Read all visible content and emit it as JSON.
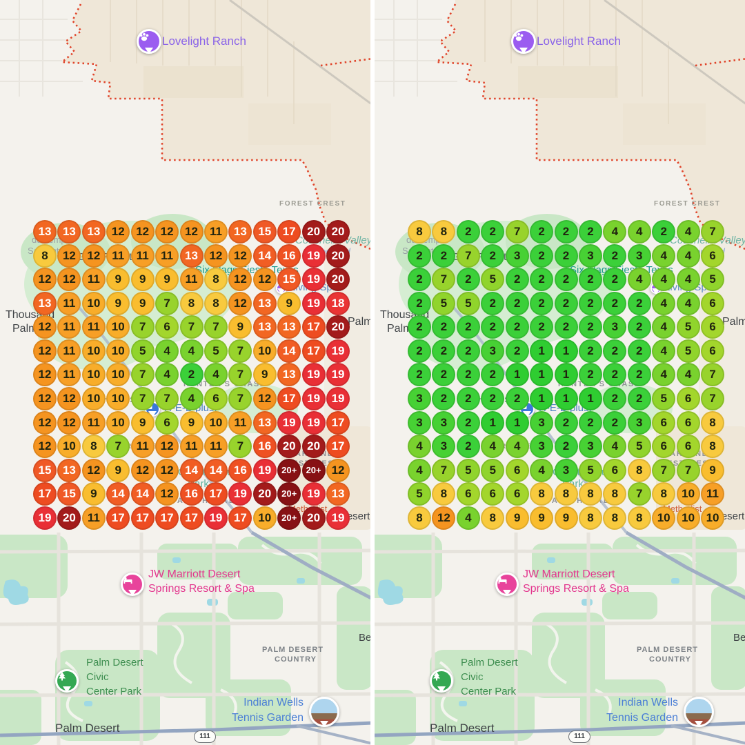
{
  "labels": {
    "lovelight_ranch": "Lovelight Ranch",
    "forest_crest": "FOREST CREST",
    "hindu_temple_line1": "du Templ",
    "hindu_temple_line2": "San Antonio",
    "grey_forest": "Grey Forest",
    "six_flags": "Six Flags Fiesta Texas",
    "coachella_valley": "Coachella Valley",
    "preserve_thousand": "Thousand",
    "living_spaces": "Living Spac",
    "thousand_line1": "Thousand",
    "thousand_line2": "Palms",
    "palm_right_edge": "Palm",
    "hunters_chase": "HUNTER'S CHASE",
    "helotes": "Helotes",
    "heb": "H-E-B plus!",
    "neighborhood_frag": "RA S M",
    "oakland": "OAKLAND",
    "estates": "ESTATES",
    "country_club": "Country Club",
    "park": "Park",
    "spanish_walk": "SPANISH WALK",
    "methodist": "Methodist",
    "desert_p": "Desert P",
    "jw_line1": "JW Marriott Desert",
    "jw_line2": "Springs Resort & Spa",
    "pd_country_line1": "PALM DESERT",
    "pd_country_line2": "COUNTRY",
    "be_fragment": "Be",
    "civic_line1": "Palm Desert",
    "civic_line2": "Civic",
    "civic_line3": "Center Park",
    "indian_wells_line1": "Indian Wells",
    "indian_wells_line2": "Tennis Garden",
    "palm_desert_city": "Palm Desert",
    "route_shield": "111"
  },
  "color_scale": {
    "values": {
      "1": "#2fcd31",
      "2": "#3bd039",
      "3": "#47d134",
      "4": "#79d22e",
      "5": "#90d42c",
      "6": "#a3d62c",
      "7": "#98d32c",
      "8": "#f8ca3e",
      "9": "#f9bd2f",
      "10": "#f8ad2a",
      "11": "#f79f26",
      "12": "#f59420",
      "13": "#f26722",
      "14": "#f15d24",
      "15": "#f05926",
      "16": "#ef5123",
      "17": "#ee4c21",
      "18": "#ea3434",
      "19": "#e92f36",
      "20": "#a31b1b",
      "20+": "#871114"
    },
    "white_text_values": [
      "13",
      "14",
      "15",
      "16",
      "17",
      "18",
      "19",
      "20",
      "20+"
    ]
  },
  "grids": {
    "left": {
      "rows": [
        [
          13,
          13,
          13,
          12,
          12,
          12,
          12,
          11,
          13,
          15,
          17,
          20,
          20
        ],
        [
          8,
          12,
          12,
          11,
          11,
          11,
          13,
          12,
          12,
          14,
          16,
          19,
          20
        ],
        [
          12,
          12,
          11,
          9,
          9,
          9,
          11,
          8,
          12,
          12,
          15,
          19,
          20
        ],
        [
          13,
          11,
          10,
          9,
          9,
          7,
          8,
          8,
          12,
          13,
          9,
          19,
          18
        ],
        [
          12,
          11,
          11,
          10,
          7,
          6,
          7,
          7,
          9,
          13,
          13,
          17,
          20
        ],
        [
          12,
          11,
          10,
          10,
          5,
          4,
          4,
          5,
          7,
          10,
          14,
          17,
          19
        ],
        [
          12,
          11,
          10,
          10,
          7,
          4,
          2,
          4,
          7,
          9,
          13,
          19,
          19
        ],
        [
          12,
          12,
          10,
          10,
          7,
          7,
          4,
          6,
          7,
          12,
          17,
          19,
          19
        ],
        [
          12,
          12,
          11,
          10,
          9,
          6,
          9,
          10,
          11,
          13,
          19,
          19,
          17
        ],
        [
          12,
          10,
          8,
          7,
          11,
          12,
          11,
          11,
          7,
          16,
          20,
          20,
          17
        ],
        [
          15,
          13,
          12,
          9,
          12,
          12,
          14,
          14,
          16,
          19,
          "20+",
          "20+",
          12
        ],
        [
          17,
          15,
          9,
          14,
          14,
          12,
          16,
          17,
          19,
          20,
          "20+",
          19,
          13
        ],
        [
          19,
          20,
          11,
          17,
          17,
          17,
          17,
          19,
          17,
          10,
          "20+",
          20,
          19
        ]
      ]
    },
    "right": {
      "rows": [
        [
          8,
          8,
          2,
          2,
          7,
          2,
          2,
          2,
          4,
          4,
          2,
          4,
          7
        ],
        [
          2,
          2,
          7,
          2,
          3,
          2,
          2,
          3,
          2,
          3,
          4,
          4,
          6
        ],
        [
          2,
          7,
          2,
          5,
          2,
          2,
          2,
          2,
          2,
          4,
          4,
          4,
          5
        ],
        [
          2,
          5,
          5,
          2,
          2,
          2,
          2,
          2,
          2,
          2,
          4,
          4,
          6
        ],
        [
          2,
          2,
          2,
          2,
          2,
          2,
          2,
          2,
          3,
          2,
          4,
          5,
          6
        ],
        [
          2,
          2,
          2,
          3,
          2,
          1,
          1,
          2,
          2,
          2,
          4,
          5,
          6
        ],
        [
          2,
          2,
          2,
          2,
          1,
          1,
          1,
          2,
          2,
          2,
          4,
          4,
          7
        ],
        [
          3,
          2,
          2,
          2,
          2,
          1,
          1,
          1,
          2,
          2,
          5,
          6,
          7
        ],
        [
          3,
          3,
          2,
          1,
          1,
          3,
          2,
          2,
          2,
          3,
          6,
          6,
          8
        ],
        [
          4,
          3,
          2,
          4,
          4,
          3,
          2,
          3,
          4,
          5,
          6,
          6,
          8
        ],
        [
          4,
          7,
          5,
          5,
          6,
          4,
          3,
          5,
          6,
          8,
          7,
          7,
          9
        ],
        [
          5,
          8,
          6,
          6,
          6,
          8,
          8,
          8,
          8,
          7,
          8,
          10,
          11
        ],
        [
          8,
          12,
          4,
          8,
          9,
          9,
          9,
          8,
          8,
          8,
          10,
          10,
          10
        ]
      ]
    }
  },
  "map_colors": {
    "tan_region": "#efe7d8",
    "base": "#f4f2ed",
    "park_green": "#c9e7c6",
    "water_teal": "#9fd9e4",
    "boundary_red": "#e0442a",
    "highway_blue": "#93a5c1",
    "purple_poi": "#9b5cf0",
    "pink_poi": "#e8439b",
    "green_poi": "#34a853",
    "blue_poi": "#3b78dc"
  }
}
